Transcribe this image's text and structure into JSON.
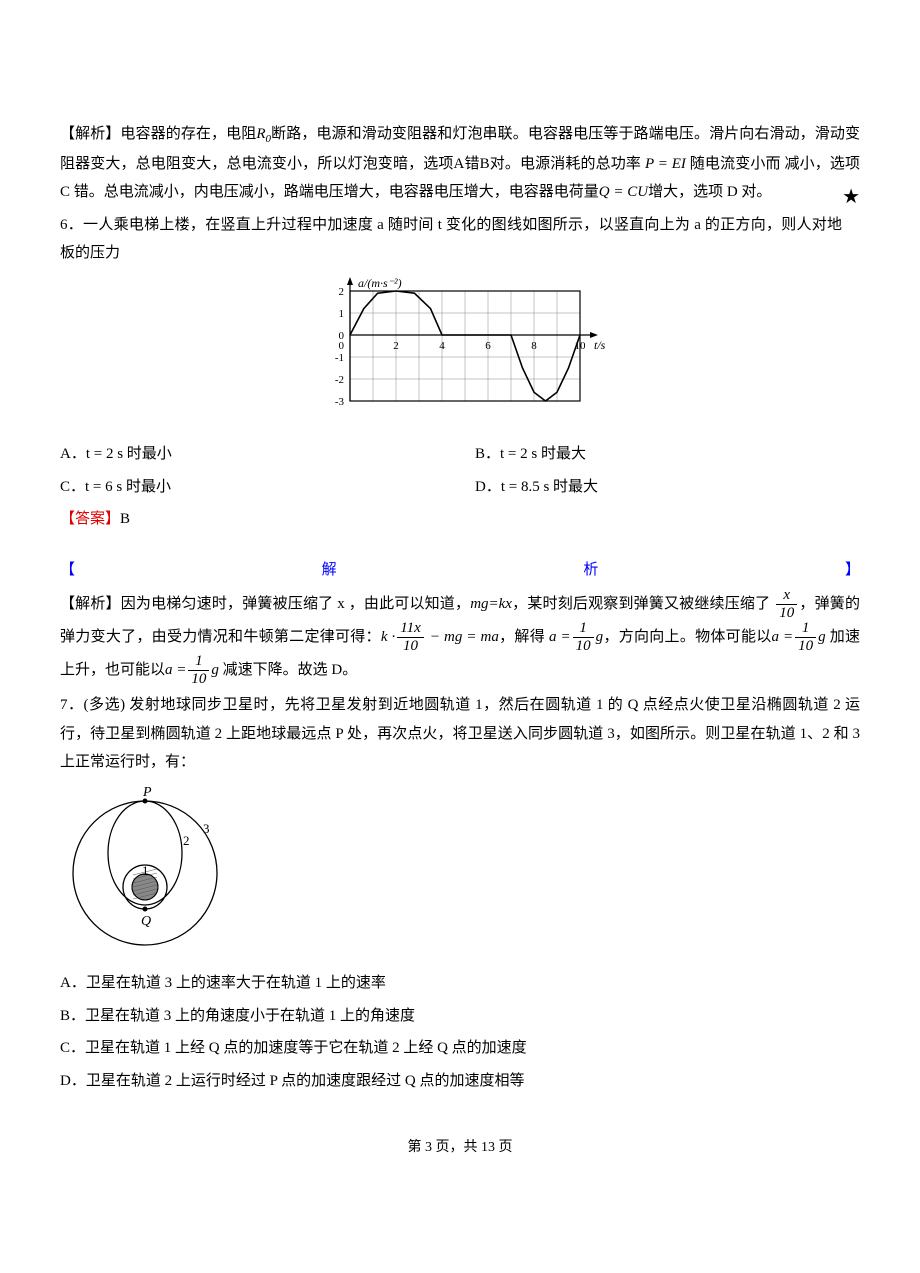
{
  "q5_analysis": {
    "label": "【解析】",
    "text_part1": "电容器的存在，电阻",
    "R0": "R",
    "R0_sub": "0",
    "text_part2": "断路，电源和滑动变阻器和灯泡串联。电容器电压等于路端电压。滑片向右滑动，滑动变阻器变大，总电阻变大，总电流变小，所以灯泡变暗，选项A错B对。电源消耗的总功率",
    "P_eq": "P = EI",
    "text_part3": "随电流变小而  减小，选项 C 错。总电流减小，内电压减小，路端电压增大，电容器电压增大，电容器电荷量",
    "Q_eq": "Q = CU",
    "text_part4": "增大，选项 D 对。",
    "star": "★"
  },
  "q6": {
    "number": "6．",
    "stem": "一人乘电梯上楼，在竖直上升过程中加速度 a 随时间 t 变化的图线如图所示，以竖直向上为 a 的正方向，则人对地板的压力",
    "chart": {
      "y_label": "a/(m·s⁻²)",
      "x_label": "t/s",
      "y_ticks": [
        2,
        1,
        0,
        -1,
        -2,
        -3
      ],
      "x_ticks": [
        0,
        2,
        4,
        6,
        8,
        10
      ],
      "x_range": [
        0,
        10
      ],
      "y_range": [
        -3,
        2
      ],
      "grid_color": "#888888",
      "curve_color": "#000000",
      "curve_points": [
        [
          0,
          0
        ],
        [
          0.6,
          1.2
        ],
        [
          1.2,
          1.9
        ],
        [
          2,
          2
        ],
        [
          2.8,
          1.9
        ],
        [
          3.5,
          1.2
        ],
        [
          4,
          0
        ],
        [
          7,
          0
        ],
        [
          7.5,
          -1.5
        ],
        [
          8,
          -2.6
        ],
        [
          8.5,
          -3
        ],
        [
          9,
          -2.6
        ],
        [
          9.5,
          -1.5
        ],
        [
          10,
          0
        ]
      ]
    },
    "options": {
      "A": "A．t = 2 s 时最小",
      "B": "B．t = 2 s 时最大",
      "C": "C．t = 6 s 时最小",
      "D": "D．t = 8.5 s 时最大"
    },
    "answer_label": "【答案】",
    "answer_value": "B"
  },
  "jie_xi_header": {
    "left": "【",
    "mid1": "解",
    "mid2": "析",
    "right": "】"
  },
  "q6_analysis": {
    "label": "【解析】",
    "text1": "因为电梯匀速时，弹簧被压缩了 x ，由此可以知道，",
    "eq1": "mg=kx",
    "text2": "，某时刻后观察到弹簧又被继续压缩了",
    "frac1_num": "x",
    "frac1_den": "10",
    "text3": "，弹簧的弹力变大了，由受力情况和牛顿第二定律可得：",
    "eq2_left": "k ·",
    "eq2_frac_num": "11x",
    "eq2_frac_den": "10",
    "eq2_mid": " − mg = ma",
    "text4": "，解得",
    "eq3_left": "a =",
    "eq3_frac_num": "1",
    "eq3_frac_den": "10",
    "eq3_right": "g",
    "text5": "，方向向上。物体可能以",
    "eq4_left": "a =",
    "eq4_frac_num": "1",
    "eq4_frac_den": "10",
    "eq4_right": "g",
    "text6": " 加速上升，也可能以",
    "eq5_left": "a =",
    "eq5_frac_num": "1",
    "eq5_frac_den": "10",
    "eq5_right": "g",
    "text7": " 减速下降。故选 D。"
  },
  "q7": {
    "number": "7．",
    "tag": "(多选)",
    "stem1": " 发射地球同步卫星时，先将卫星发射到近地圆轨道 1，然后在圆轨道 1 的 Q 点经点火使卫星沿椭圆轨道 2 运行，待卫星到椭圆轨道 2 上距地球最远点 P 处，再次点火，将卫星送入同步圆轨道 3，如图所示。则卫星在轨道 1、2 和 3 上正常运行时，有：",
    "diagram": {
      "P_label": "P",
      "Q_label": "Q",
      "label_1": "1",
      "label_2": "2",
      "label_3": "3",
      "earth_color": "#888888",
      "stroke": "#000000"
    },
    "options": {
      "A": "A．卫星在轨道 3 上的速率大于在轨道 1 上的速率",
      "B": "B．卫星在轨道 3 上的角速度小于在轨道 1 上的角速度",
      "C": "C．卫星在轨道 1 上经 Q 点的加速度等于它在轨道 2 上经 Q 点的加速度",
      "D": "D．卫星在轨道 2 上运行时经过 P 点的加速度跟经过 Q 点的加速度相等"
    }
  },
  "footer": {
    "text": "第 3 页，共 13 页"
  }
}
